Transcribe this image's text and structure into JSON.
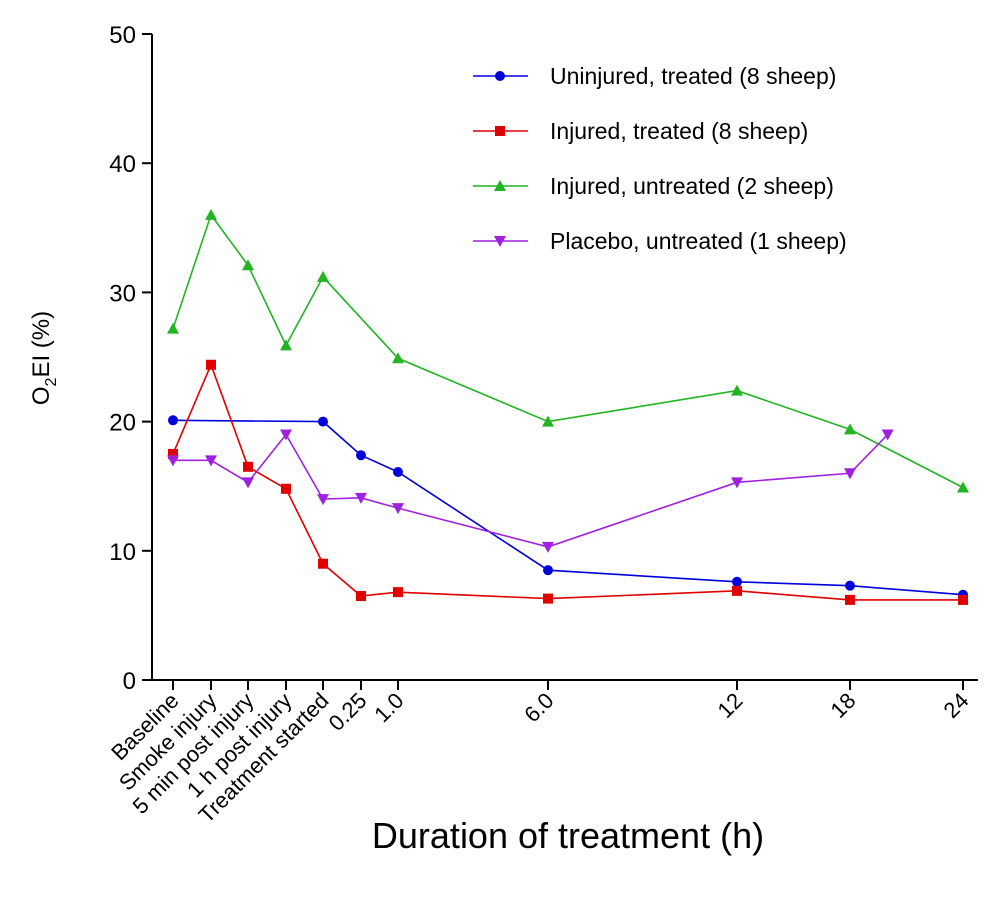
{
  "chart_data": {
    "type": "line",
    "xlabel": "Duration of treatment (h)",
    "ylabel": {
      "main": "O",
      "sub": "2",
      "rest": "EI (%)"
    },
    "ylim": [
      0,
      50
    ],
    "yticks": [
      "0",
      "10",
      "20",
      "30",
      "40",
      "50"
    ],
    "categories": [
      "Baseline",
      "Smoke injury",
      "5 min post injury",
      "1 h post injury",
      "Treatment started",
      "0.25",
      "1.0",
      "6.0",
      "12",
      "18",
      "24"
    ],
    "grid": false,
    "legend_position": "top-right",
    "series": [
      {
        "name": "Uninjured, treated (8 sheep)",
        "color": "#0000dd",
        "marker": "circle",
        "points": [
          [
            "Baseline",
            20.1
          ],
          [
            "Treatment started",
            20.0
          ],
          [
            "0.25",
            17.4
          ],
          [
            "1.0",
            16.1
          ],
          [
            "6.0",
            8.5
          ],
          [
            "12",
            7.6
          ],
          [
            "18",
            7.3
          ],
          [
            "24",
            6.6
          ]
        ]
      },
      {
        "name": "Injured, treated (8 sheep)",
        "color": "#e00000",
        "marker": "square",
        "points": [
          [
            "Baseline",
            17.5
          ],
          [
            "Smoke injury",
            24.4
          ],
          [
            "5 min post injury",
            16.5
          ],
          [
            "1 h post injury",
            14.8
          ],
          [
            "Treatment started",
            9.0
          ],
          [
            "0.25",
            6.5
          ],
          [
            "1.0",
            6.8
          ],
          [
            "6.0",
            6.3
          ],
          [
            "12",
            6.9
          ],
          [
            "18",
            6.2
          ],
          [
            "24",
            6.2
          ]
        ]
      },
      {
        "name": "Injured, untreated (2 sheep)",
        "color": "#22b422",
        "marker": "triangle-up",
        "points": [
          [
            "Baseline",
            27.2
          ],
          [
            "Smoke injury",
            36.0
          ],
          [
            "5 min post injury",
            32.1
          ],
          [
            "1 h post injury",
            25.9
          ],
          [
            "Treatment started",
            31.2
          ],
          [
            "1.0",
            24.9
          ],
          [
            "6.0",
            20.0
          ],
          [
            "12",
            22.4
          ],
          [
            "18",
            19.4
          ],
          [
            "24",
            14.9
          ]
        ]
      },
      {
        "name": "Placebo, untreated (1 sheep)",
        "color": "#a020e0",
        "marker": "triangle-down",
        "points": [
          [
            "Baseline",
            17.0
          ],
          [
            "Smoke injury",
            17.0
          ],
          [
            "5 min post injury",
            15.3
          ],
          [
            "1 h post injury",
            19.0
          ],
          [
            "Treatment started",
            14.0
          ],
          [
            "0.25",
            14.1
          ],
          [
            "1.0",
            13.3
          ],
          [
            "6.0",
            10.3
          ],
          [
            "12",
            15.3
          ],
          [
            "18",
            16.0
          ],
          [
            20,
            19.0
          ]
        ]
      }
    ]
  }
}
